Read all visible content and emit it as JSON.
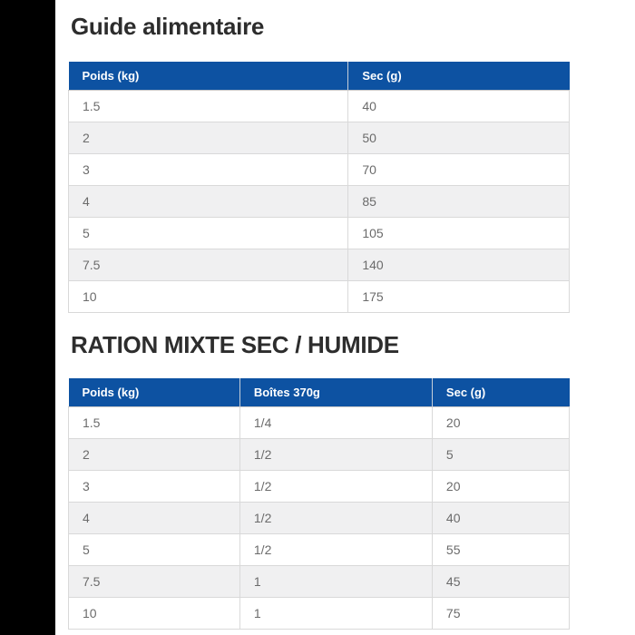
{
  "page": {
    "background": "#ffffff",
    "left_bar_color": "#000000",
    "accent_blue": "#0d52a2",
    "stripe_gray": "#f0f0f1",
    "border_gray": "#d9d9d9",
    "heading_color": "#2d2d2d",
    "cell_text_color": "#6b6b6b"
  },
  "sections": [
    {
      "title": "Guide alimentaire",
      "table": {
        "headers": [
          "Poids (kg)",
          "Sec (g)"
        ],
        "rows": [
          [
            "1.5",
            "40"
          ],
          [
            "2",
            "50"
          ],
          [
            "3",
            "70"
          ],
          [
            "4",
            "85"
          ],
          [
            "5",
            "105"
          ],
          [
            "7.5",
            "140"
          ],
          [
            "10",
            "175"
          ]
        ]
      }
    },
    {
      "title": "RATION MIXTE SEC / HUMIDE",
      "table": {
        "headers": [
          "Poids (kg)",
          "Boîtes 370g",
          "Sec (g)"
        ],
        "rows": [
          [
            "1.5",
            "1/4",
            "20"
          ],
          [
            "2",
            "1/2",
            "5"
          ],
          [
            "3",
            "1/2",
            "20"
          ],
          [
            "4",
            "1/2",
            "40"
          ],
          [
            "5",
            "1/2",
            "55"
          ],
          [
            "7.5",
            "1",
            "45"
          ],
          [
            "10",
            "1",
            "75"
          ]
        ]
      }
    }
  ]
}
